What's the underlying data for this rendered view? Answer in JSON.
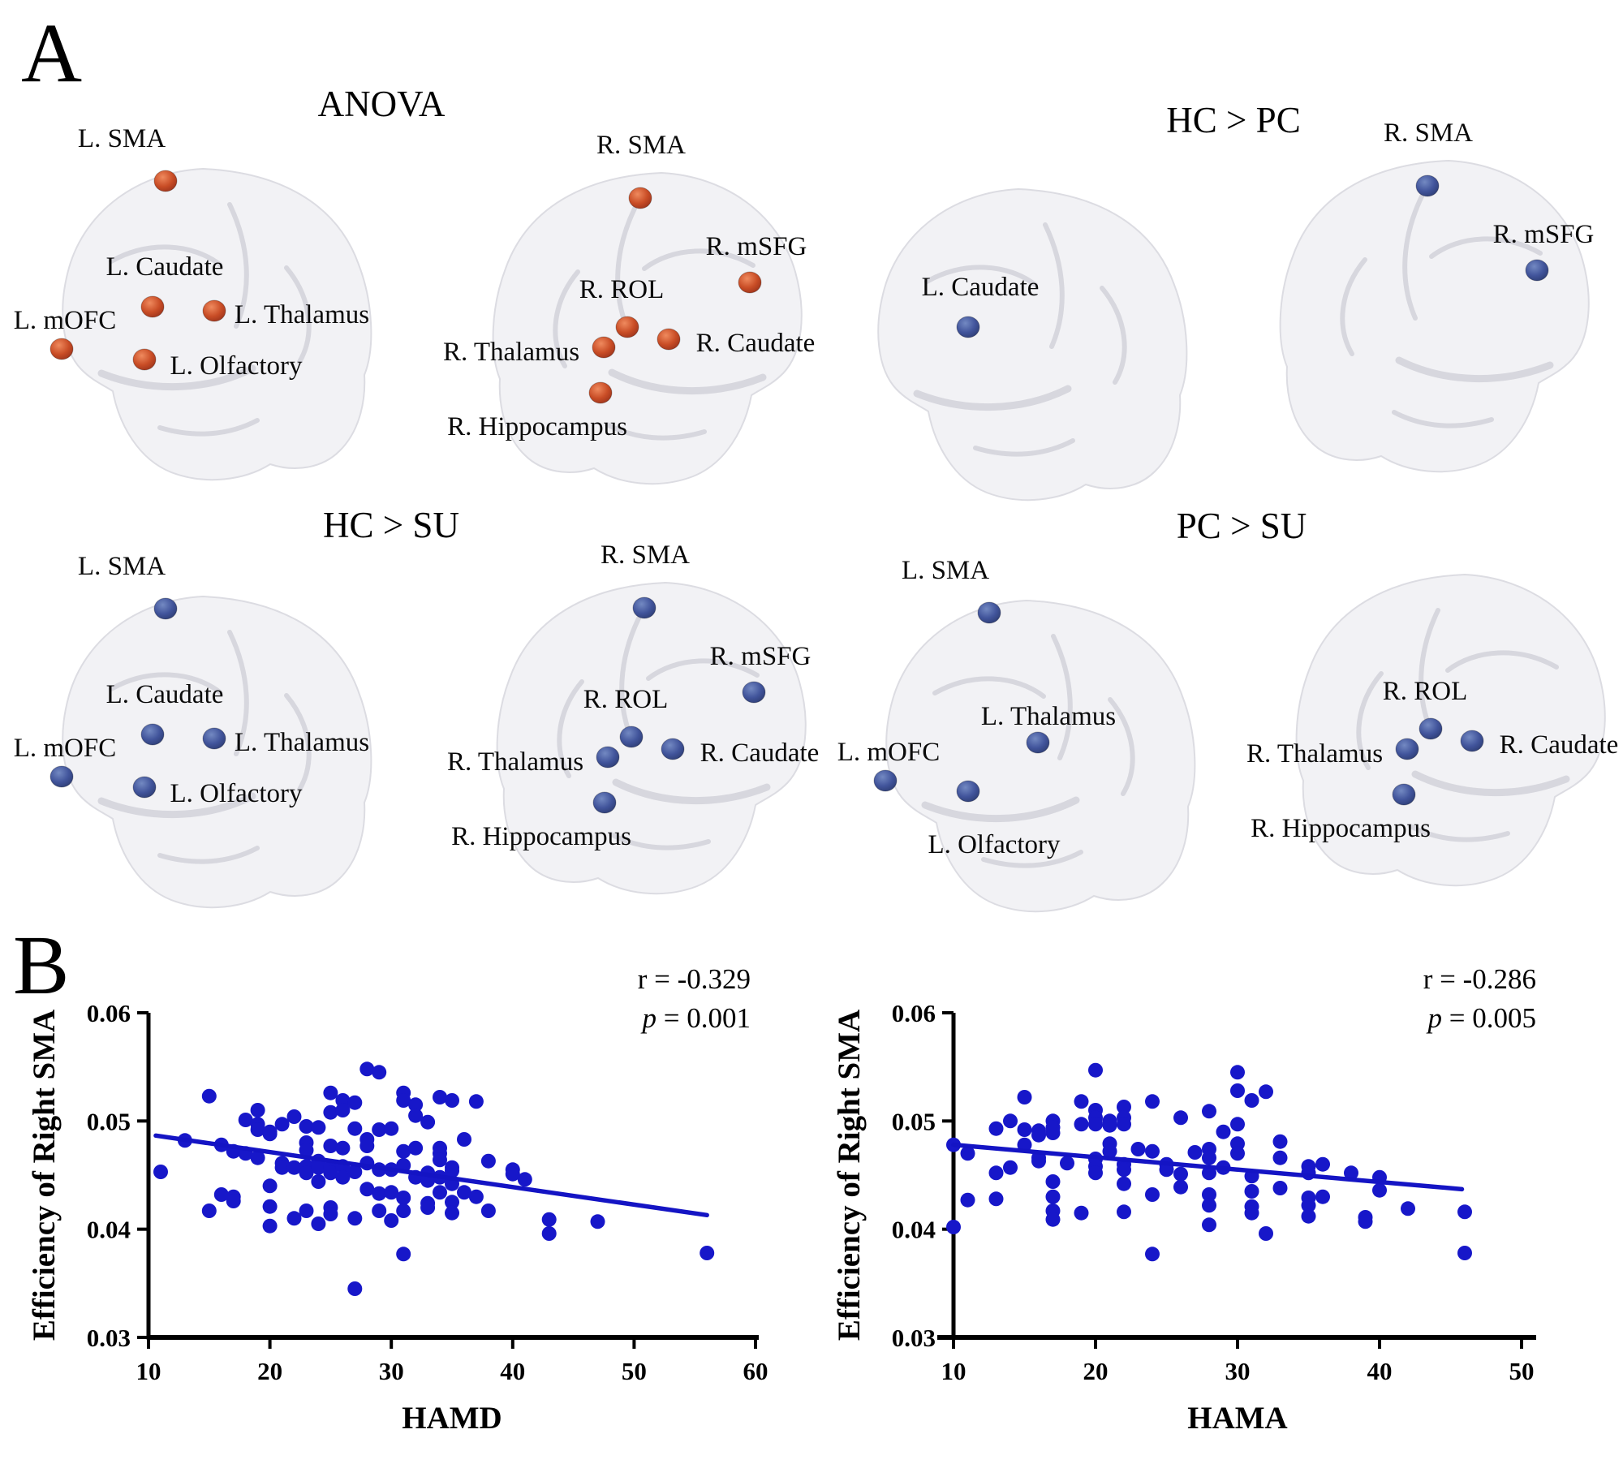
{
  "panel_a": {
    "label": "A",
    "node_color_red": "#c2451f",
    "node_color_blue": "#3d549b",
    "groups": [
      {
        "title": "ANOVA",
        "color": "red",
        "brains": [
          {
            "facing": "left",
            "nodes": [
              {
                "key": "sma",
                "label": "L. SMA"
              },
              {
                "key": "caudate",
                "label": "L. Caudate"
              },
              {
                "key": "thalamus",
                "label": "L. Thalamus"
              },
              {
                "key": "mofc",
                "label": "L. mOFC"
              },
              {
                "key": "olfactory",
                "label": "L. Olfactory"
              }
            ]
          },
          {
            "facing": "right",
            "nodes": [
              {
                "key": "sma",
                "label": "R. SMA"
              },
              {
                "key": "msfg",
                "label": "R. mSFG"
              },
              {
                "key": "rol",
                "label": "R. ROL"
              },
              {
                "key": "thalamus",
                "label": "R. Thalamus"
              },
              {
                "key": "caudate",
                "label": "R. Caudate"
              },
              {
                "key": "hippocampus",
                "label": "R. Hippocampus"
              }
            ]
          }
        ]
      },
      {
        "title": "HC > PC",
        "color": "blue",
        "brains": [
          {
            "facing": "left",
            "nodes": [
              {
                "key": "caudate",
                "label": "L. Caudate"
              }
            ]
          },
          {
            "facing": "right",
            "nodes": [
              {
                "key": "sma",
                "label": "R. SMA"
              },
              {
                "key": "msfg",
                "label": "R. mSFG"
              }
            ]
          }
        ]
      },
      {
        "title": "HC > SU",
        "color": "blue",
        "brains": [
          {
            "facing": "left",
            "nodes": [
              {
                "key": "sma",
                "label": "L. SMA"
              },
              {
                "key": "caudate",
                "label": "L. Caudate"
              },
              {
                "key": "thalamus",
                "label": "L. Thalamus"
              },
              {
                "key": "mofc",
                "label": "L. mOFC"
              },
              {
                "key": "olfactory",
                "label": "L. Olfactory"
              }
            ]
          },
          {
            "facing": "right",
            "nodes": [
              {
                "key": "sma",
                "label": "R. SMA"
              },
              {
                "key": "msfg",
                "label": "R. mSFG"
              },
              {
                "key": "rol",
                "label": "R. ROL"
              },
              {
                "key": "thalamus",
                "label": "R. Thalamus"
              },
              {
                "key": "caudate",
                "label": "R. Caudate"
              },
              {
                "key": "hippocampus",
                "label": "R. Hippocampus"
              }
            ]
          }
        ]
      },
      {
        "title": "PC > SU",
        "color": "blue",
        "brains": [
          {
            "facing": "left",
            "nodes": [
              {
                "key": "sma",
                "label": "L. SMA"
              },
              {
                "key": "thalamus",
                "label": "L. Thalamus"
              },
              {
                "key": "mofc",
                "label": "L. mOFC"
              },
              {
                "key": "olfactory",
                "label": "L. Olfactory"
              }
            ]
          },
          {
            "facing": "right",
            "nodes": [
              {
                "key": "rol",
                "label": "R. ROL"
              },
              {
                "key": "thalamus",
                "label": "R. Thalamus"
              },
              {
                "key": "caudate",
                "label": "R. Caudate"
              },
              {
                "key": "hippocampus",
                "label": "R. Hippocampus"
              }
            ]
          }
        ]
      }
    ]
  },
  "panel_b": {
    "label": "B",
    "point_color": "#1717c9",
    "line_color": "#1414c4"
  },
  "chart_data": [
    {
      "type": "scatter",
      "xlabel": "HAMD",
      "ylabel": "Efficiency of Right SMA",
      "xlim": [
        10,
        60
      ],
      "ylim": [
        0.03,
        0.06
      ],
      "xticks": [
        10,
        20,
        30,
        40,
        50,
        60
      ],
      "yticks": [
        0.03,
        0.04,
        0.05,
        0.06
      ],
      "annotation": {
        "r": "r = -0.329",
        "p": "p = 0.001"
      },
      "trendline": {
        "x1": 10.6,
        "y1": 0.04865,
        "x2": 56,
        "y2": 0.0413
      },
      "points": [
        [
          11,
          0.0453
        ],
        [
          13,
          0.0482
        ],
        [
          15,
          0.0523
        ],
        [
          15,
          0.0417
        ],
        [
          16,
          0.0478
        ],
        [
          16,
          0.0432
        ],
        [
          17,
          0.0472
        ],
        [
          17,
          0.043
        ],
        [
          17,
          0.0426
        ],
        [
          18,
          0.0501
        ],
        [
          18,
          0.047
        ],
        [
          19,
          0.051
        ],
        [
          19,
          0.0497
        ],
        [
          19,
          0.0492
        ],
        [
          19,
          0.0466
        ],
        [
          20,
          0.049
        ],
        [
          20,
          0.0488
        ],
        [
          20,
          0.044
        ],
        [
          20,
          0.0421
        ],
        [
          20,
          0.0403
        ],
        [
          21,
          0.0497
        ],
        [
          21,
          0.0461
        ],
        [
          21,
          0.0457
        ],
        [
          22,
          0.0504
        ],
        [
          22,
          0.0457
        ],
        [
          22,
          0.041
        ],
        [
          23,
          0.0495
        ],
        [
          23,
          0.048
        ],
        [
          23,
          0.0473
        ],
        [
          23,
          0.0458
        ],
        [
          23,
          0.0452
        ],
        [
          23,
          0.0417
        ],
        [
          24,
          0.0494
        ],
        [
          24,
          0.0463
        ],
        [
          24,
          0.0457
        ],
        [
          24,
          0.0444
        ],
        [
          24,
          0.0405
        ],
        [
          25,
          0.0526
        ],
        [
          25,
          0.0508
        ],
        [
          25,
          0.0477
        ],
        [
          25,
          0.0457
        ],
        [
          25,
          0.0452
        ],
        [
          25,
          0.042
        ],
        [
          25,
          0.0414
        ],
        [
          26,
          0.0519
        ],
        [
          26,
          0.051
        ],
        [
          26,
          0.0475
        ],
        [
          26,
          0.0458
        ],
        [
          26,
          0.0448
        ],
        [
          27,
          0.0517
        ],
        [
          27,
          0.0493
        ],
        [
          27,
          0.0453
        ],
        [
          27,
          0.041
        ],
        [
          27,
          0.0345
        ],
        [
          28,
          0.0548
        ],
        [
          28,
          0.0483
        ],
        [
          28,
          0.0477
        ],
        [
          28,
          0.0461
        ],
        [
          28,
          0.0437
        ],
        [
          29,
          0.0545
        ],
        [
          29,
          0.0492
        ],
        [
          29,
          0.0455
        ],
        [
          29,
          0.0433
        ],
        [
          29,
          0.0417
        ],
        [
          30,
          0.0493
        ],
        [
          30,
          0.0455
        ],
        [
          30,
          0.0434
        ],
        [
          30,
          0.0408
        ],
        [
          31,
          0.0526
        ],
        [
          31,
          0.0519
        ],
        [
          31,
          0.0472
        ],
        [
          31,
          0.0459
        ],
        [
          31,
          0.0429
        ],
        [
          31,
          0.0417
        ],
        [
          31,
          0.0377
        ],
        [
          32,
          0.0515
        ],
        [
          32,
          0.0505
        ],
        [
          32,
          0.0475
        ],
        [
          32,
          0.0448
        ],
        [
          33,
          0.0499
        ],
        [
          33,
          0.0452
        ],
        [
          33,
          0.0445
        ],
        [
          33,
          0.0424
        ],
        [
          33,
          0.042
        ],
        [
          34,
          0.0522
        ],
        [
          34,
          0.0475
        ],
        [
          34,
          0.047
        ],
        [
          34,
          0.0464
        ],
        [
          34,
          0.0448
        ],
        [
          34,
          0.0434
        ],
        [
          35,
          0.0519
        ],
        [
          35,
          0.0457
        ],
        [
          35,
          0.0454
        ],
        [
          35,
          0.0442
        ],
        [
          35,
          0.0425
        ],
        [
          35,
          0.0415
        ],
        [
          36,
          0.0483
        ],
        [
          36,
          0.0434
        ],
        [
          37,
          0.0518
        ],
        [
          37,
          0.043
        ],
        [
          38,
          0.0463
        ],
        [
          38,
          0.0417
        ],
        [
          40,
          0.0455
        ],
        [
          40,
          0.0451
        ],
        [
          41,
          0.0446
        ],
        [
          43,
          0.0409
        ],
        [
          43,
          0.0396
        ],
        [
          47,
          0.0407
        ],
        [
          56,
          0.0378
        ]
      ]
    },
    {
      "type": "scatter",
      "xlabel": "HAMA",
      "ylabel": "Efficiency of Right SMA",
      "xlim": [
        10,
        50
      ],
      "ylim": [
        0.03,
        0.06
      ],
      "xticks": [
        10,
        20,
        30,
        40,
        50
      ],
      "yticks": [
        0.03,
        0.04,
        0.05,
        0.06
      ],
      "annotation": {
        "r": "r = -0.286",
        "p": "p = 0.005"
      },
      "trendline": {
        "x1": 10,
        "y1": 0.0478,
        "x2": 45.8,
        "y2": 0.0437
      },
      "points": [
        [
          10,
          0.0478
        ],
        [
          10,
          0.0402
        ],
        [
          11,
          0.047
        ],
        [
          11,
          0.0427
        ],
        [
          13,
          0.0493
        ],
        [
          13,
          0.0452
        ],
        [
          13,
          0.0428
        ],
        [
          14,
          0.05
        ],
        [
          14,
          0.0457
        ],
        [
          15,
          0.0522
        ],
        [
          15,
          0.0492
        ],
        [
          15,
          0.0478
        ],
        [
          16,
          0.0491
        ],
        [
          16,
          0.0487
        ],
        [
          16,
          0.0466
        ],
        [
          16,
          0.0463
        ],
        [
          17,
          0.05
        ],
        [
          17,
          0.0494
        ],
        [
          17,
          0.0489
        ],
        [
          17,
          0.0444
        ],
        [
          17,
          0.043
        ],
        [
          17,
          0.0417
        ],
        [
          17,
          0.0409
        ],
        [
          18,
          0.0461
        ],
        [
          19,
          0.0518
        ],
        [
          19,
          0.0497
        ],
        [
          19,
          0.0415
        ],
        [
          20,
          0.0547
        ],
        [
          20,
          0.051
        ],
        [
          20,
          0.0503
        ],
        [
          20,
          0.0497
        ],
        [
          20,
          0.0465
        ],
        [
          20,
          0.0458
        ],
        [
          20,
          0.0452
        ],
        [
          21,
          0.05
        ],
        [
          21,
          0.0496
        ],
        [
          21,
          0.0479
        ],
        [
          21,
          0.0472
        ],
        [
          22,
          0.0513
        ],
        [
          22,
          0.0503
        ],
        [
          22,
          0.0497
        ],
        [
          22,
          0.046
        ],
        [
          22,
          0.0455
        ],
        [
          22,
          0.0442
        ],
        [
          22,
          0.0416
        ],
        [
          23,
          0.0474
        ],
        [
          24,
          0.0518
        ],
        [
          24,
          0.0472
        ],
        [
          24,
          0.0432
        ],
        [
          24,
          0.0377
        ],
        [
          25,
          0.046
        ],
        [
          25,
          0.0455
        ],
        [
          26,
          0.0503
        ],
        [
          26,
          0.0451
        ],
        [
          26,
          0.0439
        ],
        [
          27,
          0.0471
        ],
        [
          28,
          0.0509
        ],
        [
          28,
          0.0474
        ],
        [
          28,
          0.0466
        ],
        [
          28,
          0.0452
        ],
        [
          28,
          0.0432
        ],
        [
          28,
          0.0422
        ],
        [
          28,
          0.0404
        ],
        [
          29,
          0.049
        ],
        [
          29,
          0.0457
        ],
        [
          30,
          0.0545
        ],
        [
          30,
          0.0528
        ],
        [
          30,
          0.0497
        ],
        [
          30,
          0.0479
        ],
        [
          30,
          0.047
        ],
        [
          31,
          0.0519
        ],
        [
          31,
          0.0449
        ],
        [
          31,
          0.0435
        ],
        [
          31,
          0.0421
        ],
        [
          31,
          0.0415
        ],
        [
          32,
          0.0527
        ],
        [
          32,
          0.0396
        ],
        [
          33,
          0.0481
        ],
        [
          33,
          0.0466
        ],
        [
          33,
          0.0438
        ],
        [
          35,
          0.0458
        ],
        [
          35,
          0.0452
        ],
        [
          35,
          0.0429
        ],
        [
          35,
          0.0422
        ],
        [
          35,
          0.0412
        ],
        [
          36,
          0.046
        ],
        [
          36,
          0.043
        ],
        [
          38,
          0.0452
        ],
        [
          39,
          0.0411
        ],
        [
          39,
          0.0407
        ],
        [
          40,
          0.0448
        ],
        [
          40,
          0.0436
        ],
        [
          42,
          0.0419
        ],
        [
          46,
          0.0416
        ],
        [
          46,
          0.0378
        ]
      ]
    }
  ]
}
